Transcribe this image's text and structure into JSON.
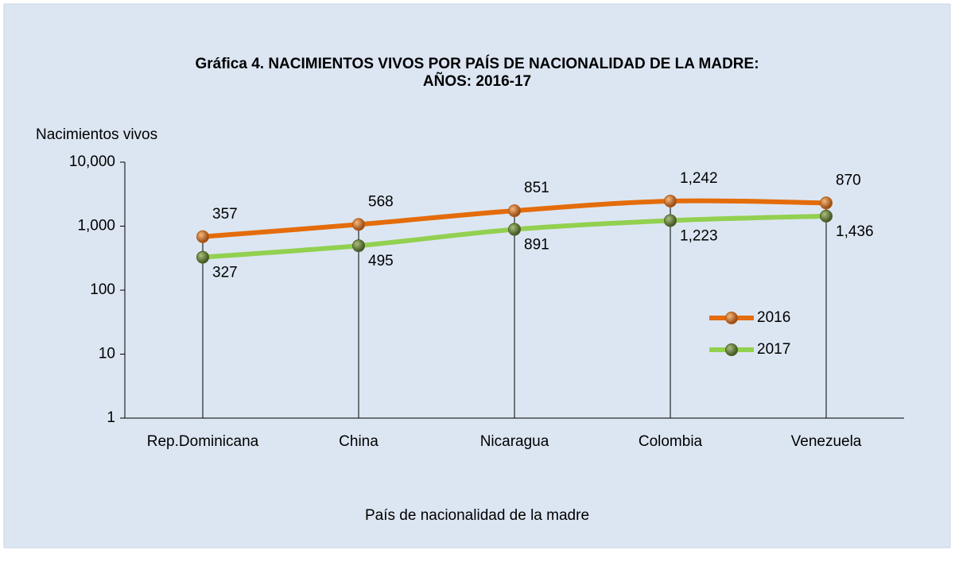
{
  "chart_data": {
    "type": "line",
    "title": "Gráfica 4. NACIMIENTOS VIVOS POR PAÍS DE NACIONALIDAD DE LA MADRE:",
    "subtitle": "AÑOS: 2016-17",
    "y_label": "Nacimientos vivos",
    "x_label": "País de nacionalidad de la madre",
    "categories": [
      "Rep.Dominicana",
      "China",
      "Nicaragua",
      "Colombia",
      "Venezuela"
    ],
    "series": [
      {
        "name": "2016",
        "color": "#e46c0a",
        "marker_color": "#b85a12",
        "values": [
          357,
          568,
          851,
          1242,
          870
        ],
        "value_labels": [
          "357",
          "568",
          "851",
          "1,242",
          "870"
        ]
      },
      {
        "name": "2017",
        "color": "#92d050",
        "marker_color": "#4f6228",
        "values": [
          327,
          495,
          891,
          1223,
          1436
        ],
        "value_labels": [
          "327",
          "495",
          "891",
          "1,223",
          "1,436"
        ]
      }
    ],
    "stacked": true,
    "log_scale": true,
    "ylim": [
      1,
      10000
    ],
    "yticks": [
      1,
      10,
      100,
      {
        "value": 1000,
        "label": "1,000"
      },
      {
        "value": 10000,
        "label": "10,000"
      }
    ],
    "grid": false,
    "legend": "right"
  }
}
